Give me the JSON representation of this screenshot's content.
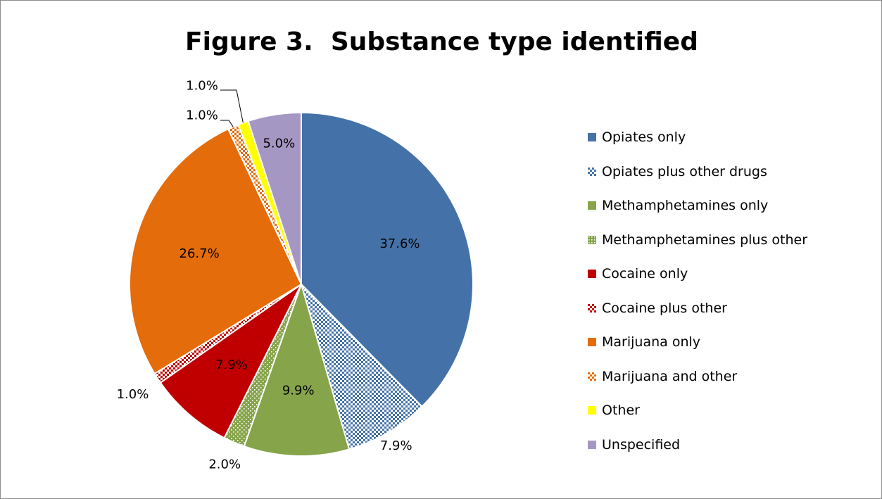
{
  "chart_data": {
    "type": "pie",
    "title": "Figure 3.  Substance type identified",
    "slices": [
      {
        "label": "Opiates only",
        "value": 37.6,
        "display": "37.6%",
        "color": "#4472a8",
        "pattern": "solid"
      },
      {
        "label": "Opiates plus other drugs",
        "value": 7.9,
        "display": "7.9%",
        "color": "#4472a8",
        "pattern": "checker"
      },
      {
        "label": "Methamphetamines only",
        "value": 9.9,
        "display": "9.9%",
        "color": "#86a44a",
        "pattern": "solid"
      },
      {
        "label": "Methamphetamines plus other",
        "value": 2.0,
        "display": "2.0%",
        "color": "#86a44a",
        "pattern": "dots"
      },
      {
        "label": "Cocaine only",
        "value": 7.9,
        "display": "7.9%",
        "color": "#c00000",
        "pattern": "solid"
      },
      {
        "label": "Cocaine plus other",
        "value": 1.0,
        "display": "1.0%",
        "color": "#c00000",
        "pattern": "checker"
      },
      {
        "label": "Marijuana only",
        "value": 26.7,
        "display": "26.7%",
        "color": "#e46c0a",
        "pattern": "solid"
      },
      {
        "label": "Marijuana and other",
        "value": 1.0,
        "display": "1.0%",
        "color": "#e46c0a",
        "pattern": "checker"
      },
      {
        "label": "Other",
        "value": 1.0,
        "display": "1.0%",
        "color": "#ffff00",
        "pattern": "solid"
      },
      {
        "label": "Unspecified",
        "value": 5.0,
        "display": "5.0%",
        "color": "#a597c3",
        "pattern": "solid"
      }
    ],
    "legend_position": "right",
    "start_angle": "12 o'clock",
    "direction": "clockwise"
  }
}
